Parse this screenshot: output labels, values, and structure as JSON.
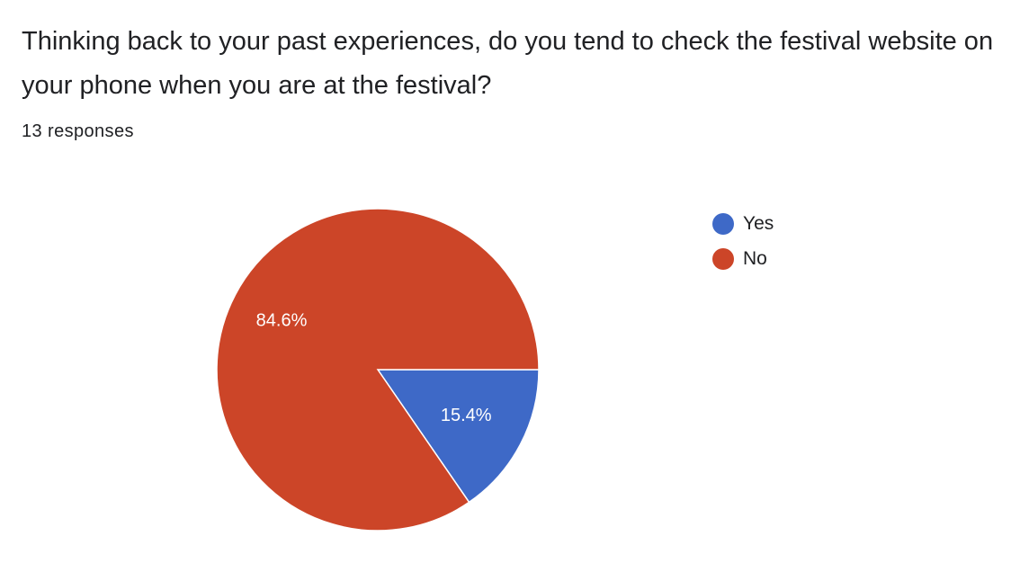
{
  "question": {
    "title": "Thinking back to your past experiences, do you tend to check the festival website on your phone when you are at the festival?",
    "response_count": "13 responses"
  },
  "chart_data": {
    "type": "pie",
    "categories": [
      "Yes",
      "No"
    ],
    "values": [
      15.4,
      84.6
    ],
    "value_labels": [
      "15.4%",
      "84.6%"
    ],
    "colors": [
      "#3e69c7",
      "#cc4528"
    ],
    "start": "3 o'clock",
    "direction": "clockwise",
    "legend_position": "right"
  }
}
